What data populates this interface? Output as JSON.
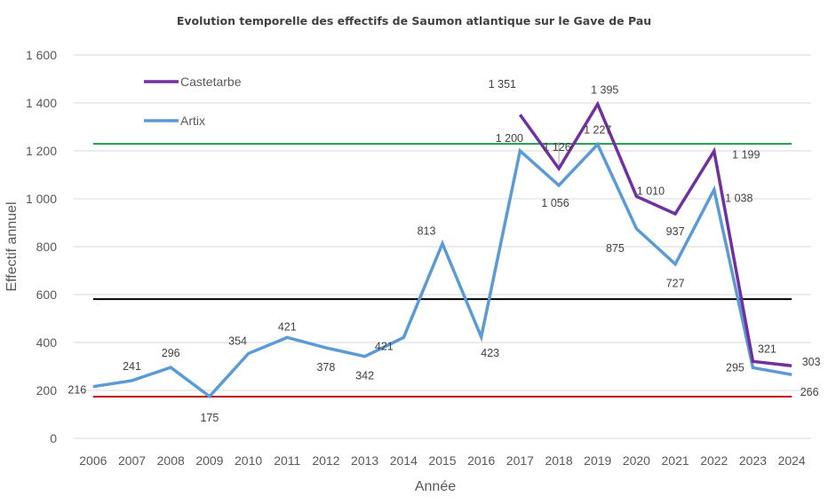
{
  "chart_data": {
    "type": "line",
    "title": "Evolution temporelle des effectifs de Saumon atlantique sur le Gave de Pau",
    "xlabel": "Année",
    "ylabel": "Effectif annuel",
    "ylim": [
      0,
      1600
    ],
    "y_ticks": [
      0,
      200,
      400,
      600,
      800,
      1000,
      1200,
      1400,
      1600
    ],
    "y_tick_labels": [
      "0",
      "200",
      "400",
      "600",
      "800",
      "1 000",
      "1 200",
      "1 400",
      "1 600"
    ],
    "grid": true,
    "legend": "top-left",
    "categories": [
      "2006",
      "2007",
      "2008",
      "2009",
      "2010",
      "2011",
      "2012",
      "2013",
      "2014",
      "2015",
      "2016",
      "2017",
      "2018",
      "2019",
      "2020",
      "2021",
      "2022",
      "2023",
      "2024"
    ],
    "series": [
      {
        "name": "Castetarbe",
        "color": "#7030A0",
        "values": [
          null,
          null,
          null,
          null,
          null,
          null,
          null,
          null,
          null,
          null,
          null,
          1351,
          1126,
          1395,
          1010,
          937,
          1199,
          321,
          303
        ],
        "labels": [
          null,
          null,
          null,
          null,
          null,
          null,
          null,
          null,
          null,
          null,
          null,
          "1 351",
          "1 126",
          "1 395",
          "1 010",
          "937",
          "1 199",
          "321",
          "303"
        ]
      },
      {
        "name": "Artix",
        "color": "#5B9BD5",
        "values": [
          216,
          241,
          296,
          175,
          354,
          421,
          378,
          342,
          421,
          813,
          423,
          1200,
          1056,
          1227,
          875,
          727,
          1038,
          295,
          266
        ],
        "labels": [
          "216",
          "241",
          "296",
          "175",
          "354",
          "421",
          "378",
          "342",
          "421",
          "813",
          "423",
          "1 200",
          "1 056",
          "1 227",
          "875",
          "727",
          "1 038",
          "295",
          "266"
        ]
      }
    ],
    "reference_lines": [
      {
        "name": "green-reference",
        "value": 1229,
        "color": "#1E9B4B"
      },
      {
        "name": "black-reference",
        "value": 581,
        "color": "#000000"
      },
      {
        "name": "red-reference",
        "value": 174,
        "color": "#C00000"
      }
    ]
  }
}
